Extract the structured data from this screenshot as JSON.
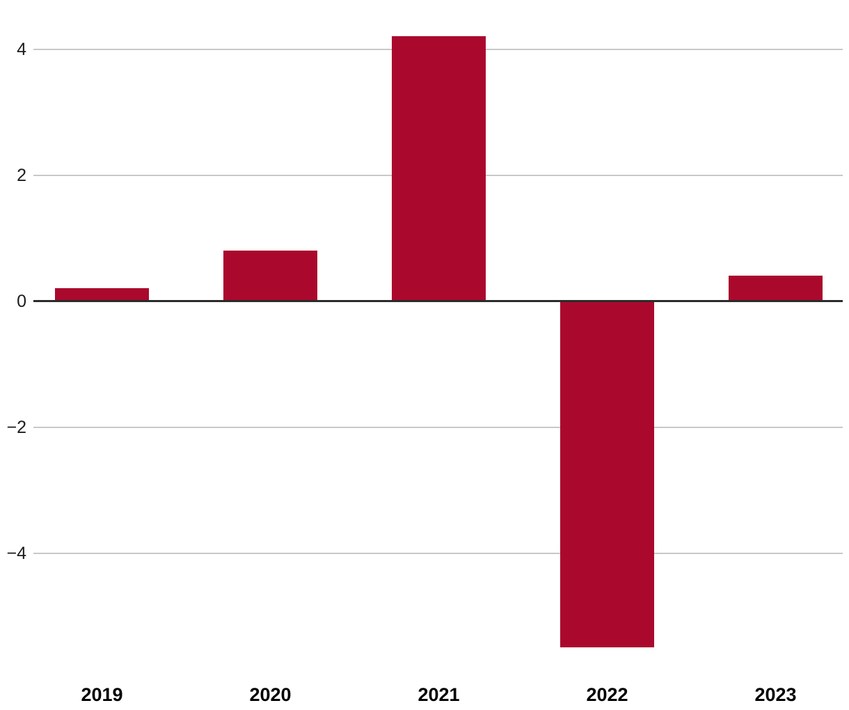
{
  "chart_data": {
    "type": "bar",
    "title": "",
    "xlabel": "",
    "ylabel": "",
    "categories": [
      "2019",
      "2020",
      "2021",
      "2022",
      "2023"
    ],
    "values": [
      0.2,
      0.8,
      4.2,
      -5.5,
      0.4
    ],
    "y_ticks": [
      {
        "value": 4,
        "label": "4"
      },
      {
        "value": 2,
        "label": "2"
      },
      {
        "value": 0,
        "label": "0"
      },
      {
        "value": -2,
        "label": "−2"
      },
      {
        "value": -4,
        "label": "−4"
      }
    ],
    "ylim": [
      -5.75,
      4.45
    ],
    "grid": "horizontal-only",
    "legend": "none",
    "colors": {
      "bar": "#AA092D",
      "gridline": "#C8C8C8",
      "zero_line": "#2B2B2B",
      "y_tick_label": "#1C1C1C",
      "x_tick_label": "#000000",
      "background": "#FFFFFF"
    }
  }
}
